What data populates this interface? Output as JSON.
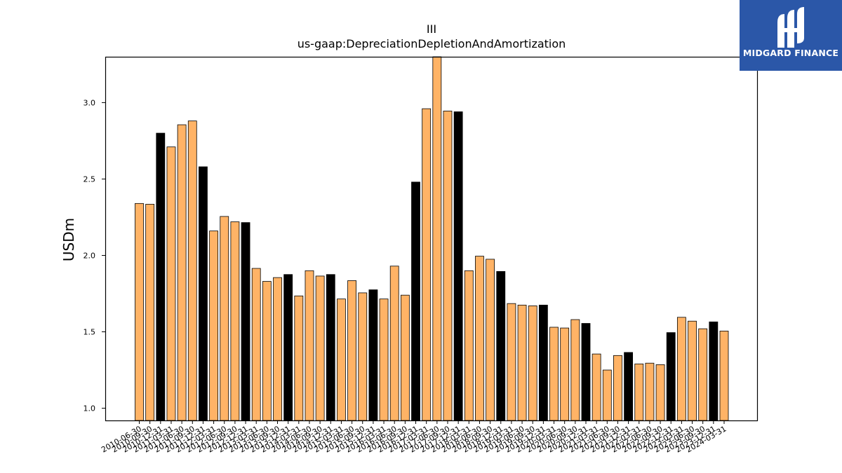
{
  "chart_data": {
    "type": "bar",
    "title": "III",
    "subtitle": "us-gaap:DepreciationDepletionAndAmortization",
    "xlabel": "",
    "ylabel": "USDm",
    "ylim": [
      0.92,
      3.3
    ],
    "yticks": [
      "1.0",
      "1.5",
      "2.0",
      "2.5",
      "3.0"
    ],
    "grid": false,
    "colors": {
      "default": "#FFB366",
      "highlight": "#000000",
      "edge": "#000000"
    },
    "categories": [
      "2010-06-30",
      "2010-09-30",
      "2010-12-31",
      "2011-03-31",
      "2011-06-30",
      "2011-09-30",
      "2011-12-31",
      "2012-03-31",
      "2012-06-30",
      "2012-09-30",
      "2012-12-31",
      "2013-03-31",
      "2013-06-30",
      "2013-09-30",
      "2013-12-31",
      "2014-03-31",
      "2014-06-30",
      "2014-09-30",
      "2014-12-31",
      "2015-03-31",
      "2015-06-30",
      "2015-09-30",
      "2015-12-31",
      "2016-03-31",
      "2016-06-30",
      "2016-09-30",
      "2016-12-31",
      "2017-03-31",
      "2017-06-30",
      "2017-09-30",
      "2017-12-31",
      "2018-03-31",
      "2018-06-30",
      "2018-09-30",
      "2018-12-31",
      "2019-03-31",
      "2019-06-30",
      "2019-09-30",
      "2019-12-31",
      "2020-03-31",
      "2020-06-30",
      "2020-09-30",
      "2020-12-31",
      "2021-03-31",
      "2021-06-30",
      "2021-09-30",
      "2021-12-31",
      "2022-03-31",
      "2022-06-30",
      "2022-09-30",
      "2022-12-31",
      "2023-03-31",
      "2023-06-30",
      "2023-09-30",
      "2023-12-31",
      "2024-03-31"
    ],
    "values": [
      2.34,
      2.335,
      2.8,
      2.71,
      2.855,
      2.88,
      2.58,
      2.16,
      2.255,
      2.22,
      2.215,
      1.915,
      1.83,
      1.855,
      1.875,
      1.735,
      1.9,
      1.865,
      1.875,
      1.715,
      1.835,
      1.755,
      1.775,
      1.715,
      1.93,
      1.74,
      2.48,
      2.96,
      3.3,
      2.945,
      2.94,
      1.9,
      1.995,
      1.975,
      1.895,
      1.685,
      1.675,
      1.67,
      1.675,
      1.53,
      1.525,
      1.58,
      1.555,
      1.355,
      1.25,
      1.345,
      1.365,
      1.29,
      1.295,
      1.285,
      1.495,
      1.595,
      1.57,
      1.52,
      1.565,
      1.505
    ],
    "highlight": [
      false,
      false,
      true,
      false,
      false,
      false,
      true,
      false,
      false,
      false,
      true,
      false,
      false,
      false,
      true,
      false,
      false,
      false,
      true,
      false,
      false,
      false,
      true,
      false,
      false,
      false,
      true,
      false,
      false,
      false,
      true,
      false,
      false,
      false,
      true,
      false,
      false,
      false,
      true,
      false,
      false,
      false,
      true,
      false,
      false,
      false,
      true,
      false,
      false,
      false,
      true,
      false,
      false,
      false,
      true,
      false
    ]
  },
  "logo": {
    "text": "MIDGARD FINANCE",
    "icon": "midgard-logo-icon"
  }
}
